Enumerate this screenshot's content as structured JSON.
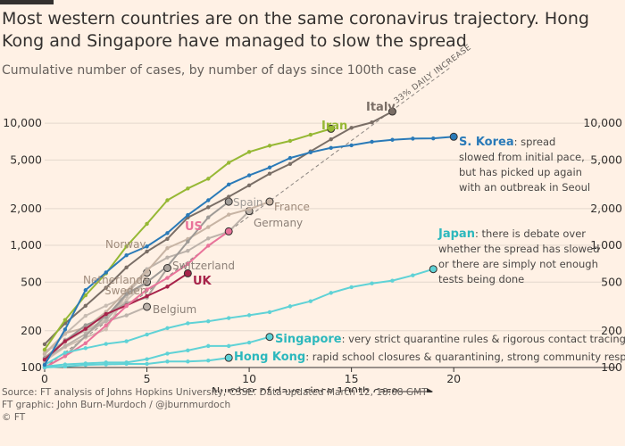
{
  "header": {
    "title": "Most western countries are on the same coronavirus trajectory. Hong Kong and Singapore have managed to slow the spread",
    "subtitle": "Cumulative number of cases, by number of days since 100th case"
  },
  "footer": {
    "source": "Source: FT analysis of Johns Hopkins University, CSSE. Data updated March 12, 18:08 GMT",
    "graphic": "FT graphic: John Burn-Murdoch / @jburnmurdoch",
    "copyright": "© FT"
  },
  "chart_data": {
    "type": "line",
    "xlabel": "Number of days since 100th case",
    "x_ticks": [
      0,
      5,
      10,
      15,
      20
    ],
    "y_scale": "log",
    "y_ticks": [
      100,
      200,
      500,
      1000,
      2000,
      5000,
      10000
    ],
    "y_tick_labels": [
      "100",
      "200",
      "500",
      "1,000",
      "2,000",
      "5,000",
      "10,000"
    ],
    "xlim": [
      0,
      22
    ],
    "ylim": [
      100,
      15000
    ],
    "grid": true,
    "reference_line": {
      "label": "33% DAILY INCREASE",
      "start_day": 0,
      "start_value": 100,
      "daily_growth": 0.33
    },
    "series": [
      {
        "name": "Italy",
        "color": "#7a6e66",
        "label_text": "Italy",
        "values": [
          [
            0,
            155
          ],
          [
            1,
            230
          ],
          [
            2,
            320
          ],
          [
            3,
            450
          ],
          [
            4,
            660
          ],
          [
            5,
            890
          ],
          [
            6,
            1130
          ],
          [
            7,
            1690
          ],
          [
            8,
            2050
          ],
          [
            9,
            2500
          ],
          [
            10,
            3100
          ],
          [
            11,
            3860
          ],
          [
            12,
            4640
          ],
          [
            13,
            5880
          ],
          [
            14,
            7380
          ],
          [
            15,
            9170
          ],
          [
            16,
            10150
          ],
          [
            17,
            12460
          ]
        ]
      },
      {
        "name": "Iran",
        "color": "#96b834",
        "label_text": "Iran",
        "values": [
          [
            0,
            140
          ],
          [
            1,
            245
          ],
          [
            2,
            390
          ],
          [
            3,
            590
          ],
          [
            4,
            980
          ],
          [
            5,
            1500
          ],
          [
            6,
            2340
          ],
          [
            7,
            2920
          ],
          [
            8,
            3510
          ],
          [
            9,
            4750
          ],
          [
            10,
            5820
          ],
          [
            11,
            6540
          ],
          [
            12,
            7160
          ],
          [
            13,
            8040
          ],
          [
            14,
            9000
          ]
        ]
      },
      {
        "name": "S. Korea",
        "color": "#2a7ab8",
        "label_text": "S. Korea",
        "annotation": [
          "spread",
          "slowed from initial pace,",
          "but has picked up again",
          "with an outbreak in Seoul"
        ],
        "values": [
          [
            0,
            105
          ],
          [
            1,
            205
          ],
          [
            2,
            430
          ],
          [
            3,
            600
          ],
          [
            4,
            830
          ],
          [
            5,
            980
          ],
          [
            6,
            1260
          ],
          [
            7,
            1770
          ],
          [
            8,
            2340
          ],
          [
            9,
            3150
          ],
          [
            10,
            3740
          ],
          [
            11,
            4340
          ],
          [
            12,
            5190
          ],
          [
            13,
            5770
          ],
          [
            14,
            6280
          ],
          [
            15,
            6590
          ],
          [
            16,
            7040
          ],
          [
            17,
            7310
          ],
          [
            18,
            7480
          ],
          [
            19,
            7510
          ],
          [
            20,
            7750
          ]
        ]
      },
      {
        "name": "Spain",
        "color": "#9e9a96",
        "label_text": "Spain",
        "values": [
          [
            0,
            120
          ],
          [
            1,
            165
          ],
          [
            2,
            222
          ],
          [
            3,
            259
          ],
          [
            4,
            400
          ],
          [
            5,
            500
          ],
          [
            6,
            673
          ],
          [
            7,
            1073
          ],
          [
            8,
            1695
          ],
          [
            9,
            2277
          ]
        ]
      },
      {
        "name": "France",
        "color": "#c7b4a4",
        "label_text": "France",
        "values": [
          [
            0,
            130
          ],
          [
            1,
            191
          ],
          [
            2,
            212
          ],
          [
            3,
            285
          ],
          [
            4,
            423
          ],
          [
            5,
            613
          ],
          [
            6,
            949
          ],
          [
            7,
            1126
          ],
          [
            8,
            1412
          ],
          [
            9,
            1784
          ],
          [
            10,
            1980
          ],
          [
            11,
            2281
          ]
        ]
      },
      {
        "name": "Germany",
        "color": "#bcb2aa",
        "label_text": "Germany",
        "values": [
          [
            0,
            117
          ],
          [
            1,
            150
          ],
          [
            2,
            188
          ],
          [
            3,
            240
          ],
          [
            4,
            400
          ],
          [
            5,
            639
          ],
          [
            6,
            795
          ],
          [
            7,
            902
          ],
          [
            8,
            1139
          ],
          [
            9,
            1296
          ],
          [
            10,
            1908
          ]
        ]
      },
      {
        "name": "US",
        "color": "#e9739a",
        "label_text": "US",
        "values": [
          [
            0,
            100
          ],
          [
            1,
            124
          ],
          [
            2,
            158
          ],
          [
            3,
            221
          ],
          [
            4,
            319
          ],
          [
            5,
            435
          ],
          [
            6,
            541
          ],
          [
            7,
            704
          ],
          [
            8,
            994
          ],
          [
            9,
            1301
          ]
        ]
      },
      {
        "name": "Switzerland",
        "color": "#aaa29c",
        "label_text": "Switzerland",
        "values": [
          [
            0,
            100
          ],
          [
            1,
            124
          ],
          [
            2,
            181
          ],
          [
            3,
            268
          ],
          [
            4,
            337
          ],
          [
            5,
            374
          ],
          [
            6,
            652
          ]
        ]
      },
      {
        "name": "Norway",
        "color": "#cfc0b4",
        "label_text": "Norway",
        "values": [
          [
            0,
            113
          ],
          [
            1,
            147
          ],
          [
            2,
            176
          ],
          [
            3,
            205
          ],
          [
            4,
            400
          ],
          [
            5,
            598
          ]
        ]
      },
      {
        "name": "Netherlands",
        "color": "#c8bcb2",
        "label_text": "Netherlands",
        "values": [
          [
            0,
            128
          ],
          [
            1,
            188
          ],
          [
            2,
            265
          ],
          [
            3,
            321
          ],
          [
            4,
            382
          ],
          [
            5,
            503
          ]
        ]
      },
      {
        "name": "Sweden",
        "color": "#d0c2b6",
        "label_text": "Sweden",
        "values": [
          [
            0,
            137
          ],
          [
            1,
            161
          ],
          [
            2,
            203
          ],
          [
            3,
            248
          ],
          [
            4,
            355
          ],
          [
            5,
            500
          ]
        ]
      },
      {
        "name": "Belgium",
        "color": "#bdb3ab",
        "label_text": "Belgium",
        "values": [
          [
            0,
            109
          ],
          [
            1,
            169
          ],
          [
            2,
            200
          ],
          [
            3,
            239
          ],
          [
            4,
            267
          ],
          [
            5,
            314
          ]
        ]
      },
      {
        "name": "UK",
        "color": "#a7234a",
        "label_text": "UK",
        "values": [
          [
            0,
            116
          ],
          [
            1,
            164
          ],
          [
            2,
            207
          ],
          [
            3,
            274
          ],
          [
            4,
            322
          ],
          [
            5,
            384
          ],
          [
            6,
            459
          ],
          [
            7,
            590
          ]
        ]
      },
      {
        "name": "Japan",
        "color": "#5fd2d6",
        "label_text": "Japan",
        "annotation": [
          "there is debate over",
          "whether the spread has slowed",
          "or there are simply not enough",
          "tests being done"
        ],
        "values": [
          [
            0,
            105
          ],
          [
            1,
            132
          ],
          [
            2,
            144
          ],
          [
            3,
            156
          ],
          [
            4,
            164
          ],
          [
            5,
            186
          ],
          [
            6,
            210
          ],
          [
            7,
            230
          ],
          [
            8,
            239
          ],
          [
            9,
            254
          ],
          [
            10,
            268
          ],
          [
            11,
            284
          ],
          [
            12,
            317
          ],
          [
            13,
            349
          ],
          [
            14,
            408
          ],
          [
            15,
            455
          ],
          [
            16,
            488
          ],
          [
            17,
            514
          ],
          [
            18,
            568
          ],
          [
            19,
            639
          ]
        ]
      },
      {
        "name": "Singapore",
        "color": "#5fd2d6",
        "label_text": "Singapore",
        "annotation": [
          "very strict quarantine rules & rigorous contact tracing"
        ],
        "values": [
          [
            0,
            102
          ],
          [
            1,
            106
          ],
          [
            2,
            108
          ],
          [
            3,
            110
          ],
          [
            4,
            110
          ],
          [
            5,
            117
          ],
          [
            6,
            130
          ],
          [
            7,
            138
          ],
          [
            8,
            150
          ],
          [
            9,
            150
          ],
          [
            10,
            160
          ],
          [
            11,
            178
          ]
        ]
      },
      {
        "name": "Hong Kong",
        "color": "#5fd2d6",
        "label_text": "Hong Kong",
        "annotation": [
          "rapid school closures & quarantining, strong community response"
        ],
        "values": [
          [
            0,
            100
          ],
          [
            1,
            102
          ],
          [
            2,
            105
          ],
          [
            3,
            106
          ],
          [
            4,
            107
          ],
          [
            5,
            107
          ],
          [
            6,
            112
          ],
          [
            7,
            112
          ],
          [
            8,
            114
          ],
          [
            9,
            120
          ]
        ]
      }
    ]
  }
}
